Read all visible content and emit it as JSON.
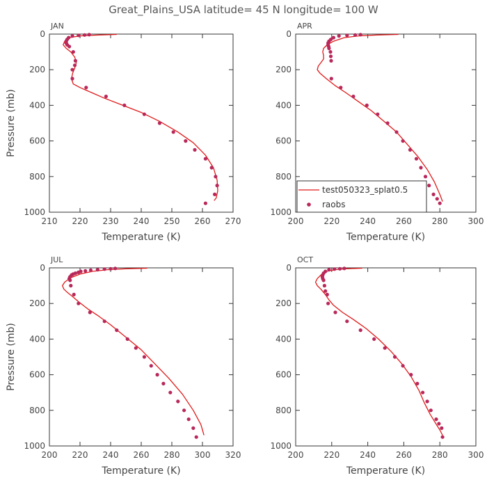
{
  "title": "Great_Plains_USA   latitude= 45 N longitude= 100 W",
  "colors": {
    "model_line": "#e01818",
    "raobs_marker": "#b8285a",
    "axis": "#333333"
  },
  "legend": {
    "model_label": "test050323_splat0.5",
    "obs_label": "raobs",
    "location": "lower-left of APR panel"
  },
  "chart_data": [
    {
      "type": "line",
      "panel_title": "JAN",
      "xlabel": "Temperature (K)",
      "ylabel": "Pressure (mb)",
      "xlim": [
        210,
        270
      ],
      "ylim": [
        1000,
        0
      ],
      "xticks": [
        210,
        220,
        230,
        240,
        250,
        260,
        270
      ],
      "yticks": [
        0,
        200,
        400,
        600,
        800,
        1000
      ],
      "model": {
        "name": "test050323_splat0.5",
        "x": [
          232,
          226,
          220,
          216.5,
          215,
          214.5,
          215.5,
          217,
          218.3,
          218.8,
          218.3,
          217.6,
          217.2,
          217.8,
          220,
          224,
          228,
          234,
          240,
          246,
          252,
          257,
          261,
          263.6,
          264.8,
          265,
          264.5,
          263.8
        ],
        "y": [
          2,
          5,
          10,
          20,
          40,
          60,
          80,
          100,
          130,
          160,
          190,
          220,
          250,
          280,
          300,
          330,
          360,
          400,
          440,
          490,
          550,
          610,
          680,
          750,
          820,
          880,
          920,
          935
        ]
      },
      "raobs": {
        "name": "raobs",
        "x": [
          223,
          221.5,
          219.5,
          217.5,
          216.3,
          215.8,
          215.5,
          215.5,
          215.8,
          216.5,
          217.8,
          218.5,
          218.3,
          217.5,
          217.5,
          222,
          228.5,
          234.5,
          241,
          246,
          250.5,
          254.5,
          257.5,
          261,
          263,
          264.3,
          264.8,
          264,
          261
        ],
        "y": [
          3,
          5,
          7,
          10,
          20,
          30,
          40,
          50,
          60,
          70,
          100,
          150,
          175,
          200,
          250,
          300,
          350,
          400,
          450,
          500,
          550,
          600,
          650,
          700,
          750,
          800,
          850,
          900,
          950
        ]
      }
    },
    {
      "type": "line",
      "panel_title": "APR",
      "xlabel": "Temperature (K)",
      "ylabel": "",
      "xlim": [
        200,
        300
      ],
      "ylim": [
        1000,
        0
      ],
      "xticks": [
        200,
        220,
        240,
        260,
        280,
        300
      ],
      "yticks": [
        0,
        200,
        400,
        600,
        800,
        1000
      ],
      "model": {
        "name": "test050323_splat0.5",
        "x": [
          257,
          245,
          235,
          227,
          221,
          217.5,
          215.5,
          215,
          215.5,
          215.5,
          214,
          212.5,
          212,
          213.5,
          217,
          222,
          228,
          235,
          242,
          249,
          256,
          262,
          268,
          273,
          277,
          280,
          281.5
        ],
        "y": [
          2,
          5,
          10,
          20,
          40,
          60,
          80,
          100,
          120,
          140,
          160,
          180,
          200,
          220,
          250,
          290,
          330,
          380,
          430,
          490,
          550,
          620,
          690,
          760,
          830,
          900,
          940
        ]
      },
      "raobs": {
        "name": "raobs",
        "x": [
          236,
          233,
          228.5,
          224,
          221,
          219.5,
          218.5,
          218,
          218,
          218.3,
          218.5,
          219.3,
          219.5,
          219.7,
          219.8,
          225,
          232,
          239.5,
          245.5,
          251,
          256,
          259.5,
          263.5,
          267,
          269.5,
          272,
          274,
          276.5,
          278.5,
          280
        ],
        "y": [
          3,
          5,
          7,
          10,
          20,
          30,
          40,
          50,
          60,
          70,
          80,
          100,
          125,
          150,
          250,
          300,
          350,
          400,
          450,
          500,
          550,
          600,
          650,
          700,
          750,
          800,
          850,
          900,
          925,
          950
        ]
      }
    },
    {
      "type": "line",
      "panel_title": "JUL",
      "xlabel": "Temperature (K)",
      "ylabel": "Pressure (mb)",
      "xlim": [
        200,
        320
      ],
      "ylim": [
        1000,
        0
      ],
      "xticks": [
        200,
        220,
        240,
        260,
        280,
        300,
        320
      ],
      "yticks": [
        0,
        200,
        400,
        600,
        800,
        1000
      ],
      "model": {
        "name": "test050323_splat0.5",
        "x": [
          264,
          250,
          238,
          228,
          220,
          214,
          210,
          208.5,
          209.5,
          212,
          215,
          219,
          225,
          232,
          240,
          250,
          260,
          269,
          278,
          287,
          294,
          299,
          301
        ],
        "y": [
          2,
          5,
          10,
          20,
          35,
          55,
          80,
          100,
          120,
          140,
          160,
          190,
          230,
          270,
          320,
          390,
          460,
          540,
          620,
          710,
          800,
          880,
          940
        ]
      },
      "raobs": {
        "name": "raobs",
        "x": [
          243,
          240,
          236,
          231.5,
          227,
          223.5,
          220.5,
          219,
          217,
          215.5,
          214.5,
          213.5,
          213,
          213.5,
          214,
          216,
          219,
          226.5,
          236,
          244,
          251,
          256.5,
          262,
          266.5,
          270.5,
          274.5,
          279,
          284,
          288,
          291,
          294,
          296
        ],
        "y": [
          3,
          5,
          7,
          10,
          13,
          17,
          20,
          25,
          30,
          35,
          40,
          50,
          60,
          70,
          100,
          150,
          200,
          250,
          300,
          350,
          400,
          450,
          500,
          550,
          600,
          650,
          700,
          750,
          800,
          850,
          900,
          950
        ]
      }
    },
    {
      "type": "line",
      "panel_title": "OCT",
      "xlabel": "Temperature (K)",
      "ylabel": "",
      "xlim": [
        200,
        300
      ],
      "ylim": [
        1000,
        0
      ],
      "xticks": [
        200,
        220,
        240,
        260,
        280,
        300
      ],
      "yticks": [
        0,
        200,
        400,
        600,
        800,
        1000
      ],
      "model": {
        "name": "test050323_splat0.5",
        "x": [
          237,
          228,
          222,
          217,
          214,
          212,
          211,
          212,
          214,
          216.5,
          218.5,
          221,
          226,
          232,
          239,
          246,
          253,
          259,
          264,
          268.5,
          271.5,
          274.5,
          277.5,
          280,
          281.5
        ],
        "y": [
          2,
          5,
          10,
          20,
          40,
          60,
          80,
          100,
          120,
          150,
          180,
          210,
          250,
          290,
          340,
          400,
          470,
          540,
          610,
          690,
          760,
          820,
          870,
          910,
          940
        ]
      },
      "raobs": {
        "name": "raobs",
        "x": [
          227,
          224.5,
          221.5,
          218.5,
          216.5,
          215.5,
          215,
          214.8,
          215,
          215.5,
          216,
          216.5,
          217.5,
          218,
          222,
          228.5,
          236,
          243.5,
          249.5,
          255,
          259.5,
          264,
          267.5,
          270.5,
          273,
          275,
          278,
          279.5,
          281,
          281.5
        ],
        "y": [
          3,
          5,
          7,
          10,
          20,
          30,
          40,
          50,
          60,
          70,
          100,
          130,
          150,
          200,
          250,
          300,
          350,
          400,
          450,
          500,
          550,
          600,
          650,
          700,
          750,
          800,
          850,
          875,
          900,
          950
        ]
      }
    }
  ]
}
